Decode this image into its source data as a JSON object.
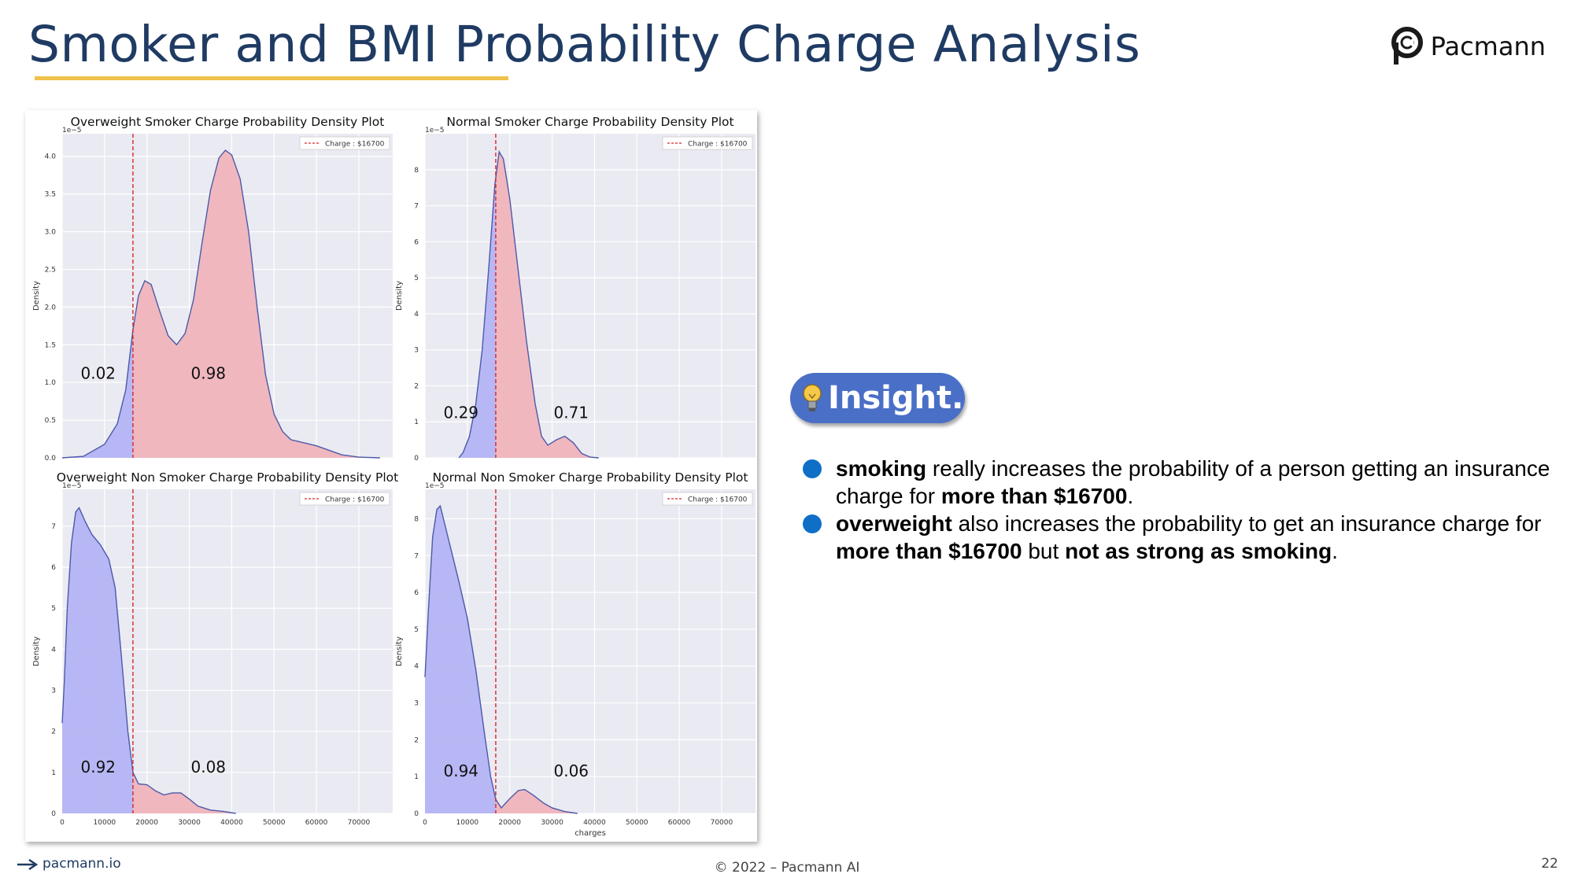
{
  "slide": {
    "title": "Smoker and BMI Probability Charge Analysis",
    "brand_name": "Pacmann",
    "footer_link": "pacmann.io",
    "copyright": "© 2022 – Pacmann AI",
    "page_number": "22"
  },
  "insight": {
    "label": "Insight.",
    "points": [
      {
        "bold1": "smoking",
        "text1": " really increases the probability of a person getting an insurance charge for ",
        "bold2": "more than $16700",
        "text2": ".",
        "bold3": "",
        "text3": ""
      },
      {
        "bold1": "overweight",
        "text1": " also increases the probability to get an insurance charge for ",
        "bold2": "more than $16700",
        "text2": " but ",
        "bold3": "not as strong as smoking",
        "text3": "."
      }
    ]
  },
  "colors": {
    "title": "#1f3b63",
    "underline": "#f0c14b",
    "badge": "#4a6fc7",
    "bullet": "#0f6fc6",
    "plot_bg": "#eaeaf2",
    "below_fill": "#b4b4f4",
    "above_fill": "#f0b4bc",
    "curve": "#4c5aa8",
    "threshold_line": "#d62728"
  },
  "chart_data": [
    {
      "type": "area",
      "title": "Overweight Smoker Charge Probability Density Plot",
      "ylabel": "Density",
      "xlabel": "",
      "y_scale_label": "1e−5",
      "xlim": [
        0,
        78000
      ],
      "ylim": [
        0,
        4.3
      ],
      "yticks": [
        0.0,
        0.5,
        1.0,
        1.5,
        2.0,
        2.5,
        3.0,
        3.5,
        4.0
      ],
      "ytick_labels": [
        "0.0",
        "0.5",
        "1.0",
        "1.5",
        "2.0",
        "2.5",
        "3.0",
        "3.5",
        "4.0"
      ],
      "xticks": [
        0,
        10000,
        20000,
        30000,
        40000,
        50000,
        60000,
        70000
      ],
      "show_xtick_labels": false,
      "threshold": 16700,
      "threshold_label": "Charge : $16700",
      "curve": [
        [
          0,
          0
        ],
        [
          5000,
          0.02
        ],
        [
          10000,
          0.18
        ],
        [
          13000,
          0.45
        ],
        [
          15000,
          0.9
        ],
        [
          16700,
          1.7
        ],
        [
          18000,
          2.15
        ],
        [
          19500,
          2.35
        ],
        [
          21000,
          2.3
        ],
        [
          23000,
          1.95
        ],
        [
          25000,
          1.62
        ],
        [
          27000,
          1.5
        ],
        [
          29000,
          1.65
        ],
        [
          31000,
          2.1
        ],
        [
          33000,
          2.85
        ],
        [
          35000,
          3.55
        ],
        [
          37000,
          3.98
        ],
        [
          38500,
          4.08
        ],
        [
          40000,
          4.02
        ],
        [
          42000,
          3.7
        ],
        [
          44000,
          3.0
        ],
        [
          46000,
          2.0
        ],
        [
          48000,
          1.1
        ],
        [
          50000,
          0.58
        ],
        [
          52000,
          0.35
        ],
        [
          54000,
          0.24
        ],
        [
          57000,
          0.2
        ],
        [
          60000,
          0.16
        ],
        [
          63000,
          0.1
        ],
        [
          66000,
          0.04
        ],
        [
          70000,
          0.01
        ],
        [
          75000,
          0
        ]
      ],
      "annotations": [
        {
          "label": "0.02",
          "x": 8500,
          "y": 1.05
        },
        {
          "label": "0.98",
          "x": 34500,
          "y": 1.05
        }
      ]
    },
    {
      "type": "area",
      "title": "Normal Smoker Charge Probability Density Plot",
      "ylabel": "Density",
      "xlabel": "",
      "y_scale_label": "1e−5",
      "xlim": [
        0,
        78000
      ],
      "ylim": [
        0,
        9
      ],
      "yticks": [
        0,
        1,
        2,
        3,
        4,
        5,
        6,
        7,
        8
      ],
      "ytick_labels": [
        "0",
        "1",
        "2",
        "3",
        "4",
        "5",
        "6",
        "7",
        "8"
      ],
      "xticks": [
        0,
        10000,
        20000,
        30000,
        40000,
        50000,
        60000,
        70000
      ],
      "show_xtick_labels": false,
      "threshold": 16700,
      "threshold_label": "Charge : $16700",
      "curve": [
        [
          8000,
          0
        ],
        [
          9000,
          0.15
        ],
        [
          10500,
          0.6
        ],
        [
          12000,
          1.5
        ],
        [
          13500,
          3.0
        ],
        [
          15000,
          5.2
        ],
        [
          16500,
          7.6
        ],
        [
          17500,
          8.5
        ],
        [
          18500,
          8.3
        ],
        [
          20000,
          7.2
        ],
        [
          22000,
          5.2
        ],
        [
          24000,
          3.2
        ],
        [
          26000,
          1.5
        ],
        [
          27500,
          0.6
        ],
        [
          29000,
          0.35
        ],
        [
          31000,
          0.5
        ],
        [
          33000,
          0.6
        ],
        [
          35000,
          0.42
        ],
        [
          37000,
          0.12
        ],
        [
          39000,
          0.02
        ],
        [
          41000,
          0
        ]
      ],
      "annotations": [
        {
          "label": "0.29",
          "x": 8500,
          "y": 1.1
        },
        {
          "label": "0.71",
          "x": 34500,
          "y": 1.1
        }
      ]
    },
    {
      "type": "area",
      "title": "Overweight Non Smoker Charge Probability Density Plot",
      "ylabel": "Density",
      "xlabel": "",
      "y_scale_label": "1e−5",
      "xlim": [
        0,
        78000
      ],
      "ylim": [
        0,
        7.9
      ],
      "yticks": [
        0,
        1,
        2,
        3,
        4,
        5,
        6,
        7
      ],
      "ytick_labels": [
        "0",
        "1",
        "2",
        "3",
        "4",
        "5",
        "6",
        "7"
      ],
      "xticks": [
        0,
        10000,
        20000,
        30000,
        40000,
        50000,
        60000,
        70000
      ],
      "show_xtick_labels": true,
      "xtick_labels": [
        "0",
        "10000",
        "20000",
        "30000",
        "40000",
        "50000",
        "60000",
        "70000"
      ],
      "threshold": 16700,
      "threshold_label": "Charge : $16700",
      "curve": [
        [
          0,
          2.2
        ],
        [
          500,
          3.2
        ],
        [
          1200,
          5.0
        ],
        [
          2200,
          6.6
        ],
        [
          3200,
          7.35
        ],
        [
          4000,
          7.45
        ],
        [
          5500,
          7.1
        ],
        [
          7000,
          6.8
        ],
        [
          9000,
          6.55
        ],
        [
          11000,
          6.2
        ],
        [
          12500,
          5.5
        ],
        [
          14000,
          3.8
        ],
        [
          15500,
          2.0
        ],
        [
          16700,
          1.0
        ],
        [
          18000,
          0.72
        ],
        [
          20000,
          0.7
        ],
        [
          22000,
          0.55
        ],
        [
          24000,
          0.45
        ],
        [
          26000,
          0.5
        ],
        [
          28000,
          0.5
        ],
        [
          30000,
          0.35
        ],
        [
          32000,
          0.18
        ],
        [
          35000,
          0.08
        ],
        [
          38000,
          0.05
        ],
        [
          41000,
          0
        ]
      ],
      "annotations": [
        {
          "label": "0.92",
          "x": 8500,
          "y": 1.0
        },
        {
          "label": "0.08",
          "x": 34500,
          "y": 1.0
        }
      ]
    },
    {
      "type": "area",
      "title": "Normal Non Smoker Charge Probability Density Plot",
      "ylabel": "Density",
      "xlabel": "charges",
      "y_scale_label": "1e−5",
      "xlim": [
        0,
        78000
      ],
      "ylim": [
        0,
        8.8
      ],
      "yticks": [
        0,
        1,
        2,
        3,
        4,
        5,
        6,
        7,
        8
      ],
      "ytick_labels": [
        "0",
        "1",
        "2",
        "3",
        "4",
        "5",
        "6",
        "7",
        "8"
      ],
      "xticks": [
        0,
        10000,
        20000,
        30000,
        40000,
        50000,
        60000,
        70000
      ],
      "show_xtick_labels": true,
      "xtick_labels": [
        "0",
        "10000",
        "20000",
        "30000",
        "40000",
        "50000",
        "60000",
        "70000"
      ],
      "threshold": 16700,
      "threshold_label": "Charge : $16700",
      "curve": [
        [
          0,
          3.7
        ],
        [
          800,
          5.5
        ],
        [
          1800,
          7.5
        ],
        [
          2800,
          8.25
        ],
        [
          3600,
          8.35
        ],
        [
          5000,
          7.7
        ],
        [
          6500,
          7.0
        ],
        [
          8000,
          6.3
        ],
        [
          10000,
          5.3
        ],
        [
          12000,
          3.9
        ],
        [
          14000,
          2.2
        ],
        [
          15500,
          1.0
        ],
        [
          16700,
          0.38
        ],
        [
          18000,
          0.15
        ],
        [
          20000,
          0.4
        ],
        [
          22000,
          0.62
        ],
        [
          23500,
          0.65
        ],
        [
          25500,
          0.5
        ],
        [
          28000,
          0.28
        ],
        [
          30000,
          0.15
        ],
        [
          33000,
          0.05
        ],
        [
          36000,
          0
        ]
      ],
      "annotations": [
        {
          "label": "0.94",
          "x": 8500,
          "y": 1.0
        },
        {
          "label": "0.06",
          "x": 34500,
          "y": 1.0
        }
      ]
    }
  ]
}
